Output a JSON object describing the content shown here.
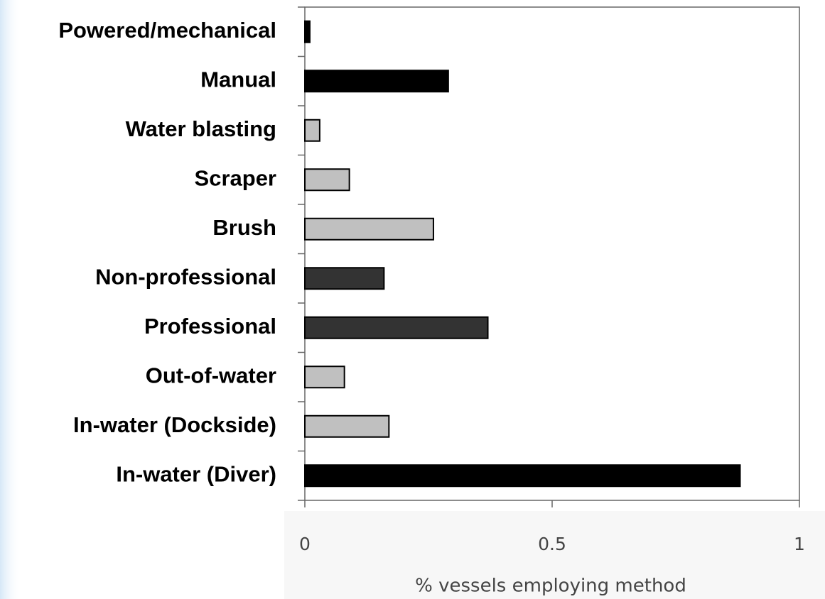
{
  "chart_data": {
    "type": "barh",
    "categories": [
      "Powered/mechanical",
      "Manual",
      "Water blasting",
      "Scraper",
      "Brush",
      "Non-professional",
      "Professional",
      "Out-of-water",
      "In-water (Dockside)",
      "In-water (Diver)"
    ],
    "values": [
      0.01,
      0.29,
      0.03,
      0.09,
      0.26,
      0.16,
      0.37,
      0.08,
      0.17,
      0.88
    ],
    "colors": [
      "#000000",
      "#000000",
      "#c0c0c0",
      "#c0c0c0",
      "#c0c0c0",
      "#333333",
      "#333333",
      "#c0c0c0",
      "#c0c0c0",
      "#000000"
    ],
    "xlabel": "% vessels employing method",
    "xlim": [
      0,
      1
    ],
    "xticks": [
      0,
      0.5,
      1
    ],
    "grid": false
  }
}
